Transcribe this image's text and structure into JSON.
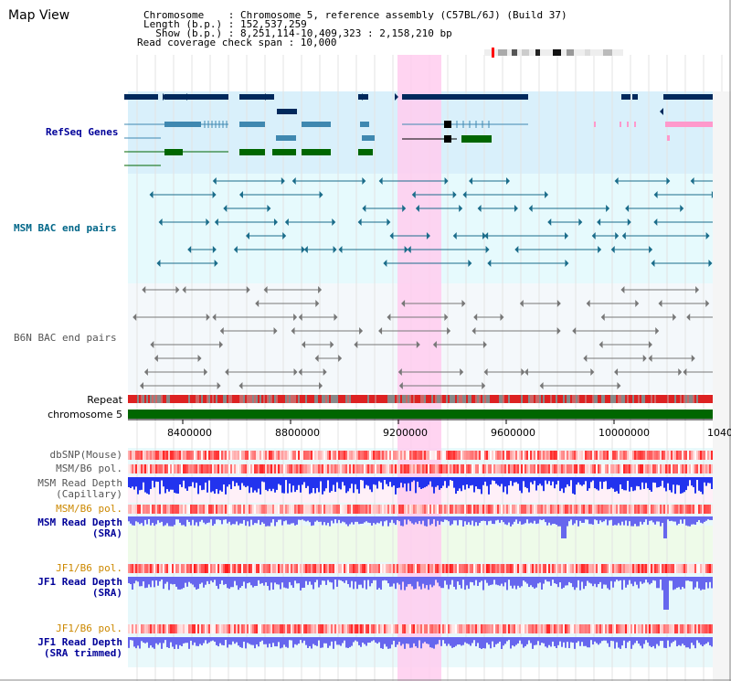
{
  "window": {
    "title": "Map View"
  },
  "header": {
    "line1": "Chromosome    : Chromosome 5, reference assembly (C57BL/6J) (Build 37)",
    "line2": "Length (b.p.) : 152,537,259",
    "line3": "  Show (b.p.) : 8,251,114-10,409,323 : 2,158,210 bp",
    "line4": "Read coverage check span : 10,000"
  },
  "tracks": {
    "refseq": "RefSeq Genes",
    "msm_bac": "MSM BAC end pairs",
    "b6n_bac": "B6N BAC end pairs",
    "repeat": "Repeat",
    "chromosome": "chromosome 5",
    "dbsnp": "dbSNP(Mouse)",
    "msm_b6_pol_1": "MSM/B6 pol.",
    "msm_read_depth_cap_1": "MSM Read Depth",
    "msm_read_depth_cap_2": "(Capillary)",
    "msm_b6_pol_2": "MSM/B6 pol.",
    "msm_read_depth_sra_1": "MSM Read Depth",
    "msm_read_depth_sra_2": "(SRA)",
    "jf1_b6_pol_1": "JF1/B6 pol.",
    "jf1_read_depth_sra_1": "JF1 Read Depth",
    "jf1_read_depth_sra_2": "(SRA)",
    "jf1_b6_pol_2": "JF1/B6 pol.",
    "jf1_read_depth_trim_1": "JF1 Read Depth",
    "jf1_read_depth_trim_2": "(SRA trimmed)"
  },
  "axis": {
    "ticks": [
      "8400000",
      "8800000",
      "9200000",
      "9600000",
      "10000000",
      "1040"
    ]
  },
  "colors": {
    "refseq_label": "#000099",
    "msm_label": "#006688",
    "b6n_label": "#555555",
    "orange_label": "#cc8800",
    "depth_label": "#000099",
    "highlight": "#ffccee",
    "gene_dark": "#00295c",
    "gene_teal": "#3f88b0",
    "gene_green": "#006600",
    "gene_pink": "#ff99cc",
    "bac_teal": "#1a6c8a",
    "bac_gray": "#777777",
    "chromosome_bar": "#006600",
    "depth_blue": "#2233ee",
    "depth_light_blue": "#6666ee"
  }
}
